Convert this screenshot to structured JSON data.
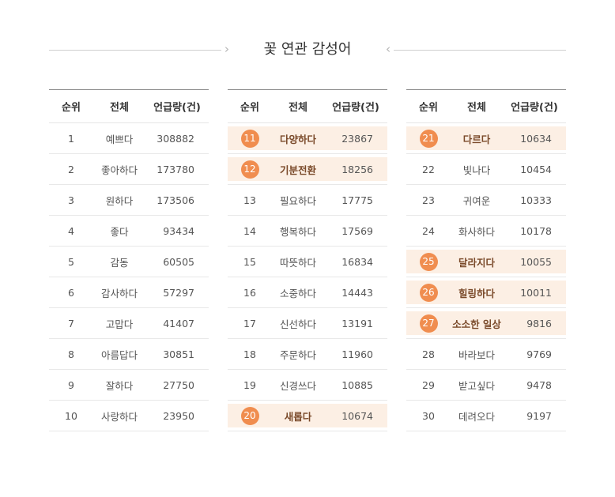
{
  "title": "꽃 연관 감성어",
  "chevron_left": "››",
  "chevron_right": "‹‹",
  "headers": {
    "rank": "순위",
    "name": "전체",
    "count": "언급량(건)"
  },
  "columns": [
    {
      "rows": [
        {
          "rank": "1",
          "name": "예쁘다",
          "count": "308882",
          "highlight": false
        },
        {
          "rank": "2",
          "name": "좋아하다",
          "count": "173780",
          "highlight": false
        },
        {
          "rank": "3",
          "name": "원하다",
          "count": "173506",
          "highlight": false
        },
        {
          "rank": "4",
          "name": "좋다",
          "count": "93434",
          "highlight": false
        },
        {
          "rank": "5",
          "name": "감동",
          "count": "60505",
          "highlight": false
        },
        {
          "rank": "6",
          "name": "감사하다",
          "count": "57297",
          "highlight": false
        },
        {
          "rank": "7",
          "name": "고맙다",
          "count": "41407",
          "highlight": false
        },
        {
          "rank": "8",
          "name": "아름답다",
          "count": "30851",
          "highlight": false
        },
        {
          "rank": "9",
          "name": "잘하다",
          "count": "27750",
          "highlight": false
        },
        {
          "rank": "10",
          "name": "사랑하다",
          "count": "23950",
          "highlight": false
        }
      ]
    },
    {
      "rows": [
        {
          "rank": "11",
          "name": "다양하다",
          "count": "23867",
          "highlight": true
        },
        {
          "rank": "12",
          "name": "기분전환",
          "count": "18256",
          "highlight": true
        },
        {
          "rank": "13",
          "name": "필요하다",
          "count": "17775",
          "highlight": false
        },
        {
          "rank": "14",
          "name": "행복하다",
          "count": "17569",
          "highlight": false
        },
        {
          "rank": "15",
          "name": "따뜻하다",
          "count": "16834",
          "highlight": false
        },
        {
          "rank": "16",
          "name": "소중하다",
          "count": "14443",
          "highlight": false
        },
        {
          "rank": "17",
          "name": "신선하다",
          "count": "13191",
          "highlight": false
        },
        {
          "rank": "18",
          "name": "주문하다",
          "count": "11960",
          "highlight": false
        },
        {
          "rank": "19",
          "name": "신경쓰다",
          "count": "10885",
          "highlight": false
        },
        {
          "rank": "20",
          "name": "새롭다",
          "count": "10674",
          "highlight": true
        }
      ]
    },
    {
      "rows": [
        {
          "rank": "21",
          "name": "다르다",
          "count": "10634",
          "highlight": true
        },
        {
          "rank": "22",
          "name": "빛나다",
          "count": "10454",
          "highlight": false
        },
        {
          "rank": "23",
          "name": "귀여운",
          "count": "10333",
          "highlight": false
        },
        {
          "rank": "24",
          "name": "화사하다",
          "count": "10178",
          "highlight": false
        },
        {
          "rank": "25",
          "name": "달라지다",
          "count": "10055",
          "highlight": true
        },
        {
          "rank": "26",
          "name": "힐링하다",
          "count": "10011",
          "highlight": true
        },
        {
          "rank": "27",
          "name": "소소한 일상",
          "count": "9816",
          "highlight": true
        },
        {
          "rank": "28",
          "name": "바라보다",
          "count": "9769",
          "highlight": false
        },
        {
          "rank": "29",
          "name": "받고싶다",
          "count": "9478",
          "highlight": false
        },
        {
          "rank": "30",
          "name": "데려오다",
          "count": "9197",
          "highlight": false
        }
      ]
    }
  ],
  "colors": {
    "highlight_bg": "#fcefe4",
    "badge": "#f08d4f",
    "border": "#888888"
  }
}
